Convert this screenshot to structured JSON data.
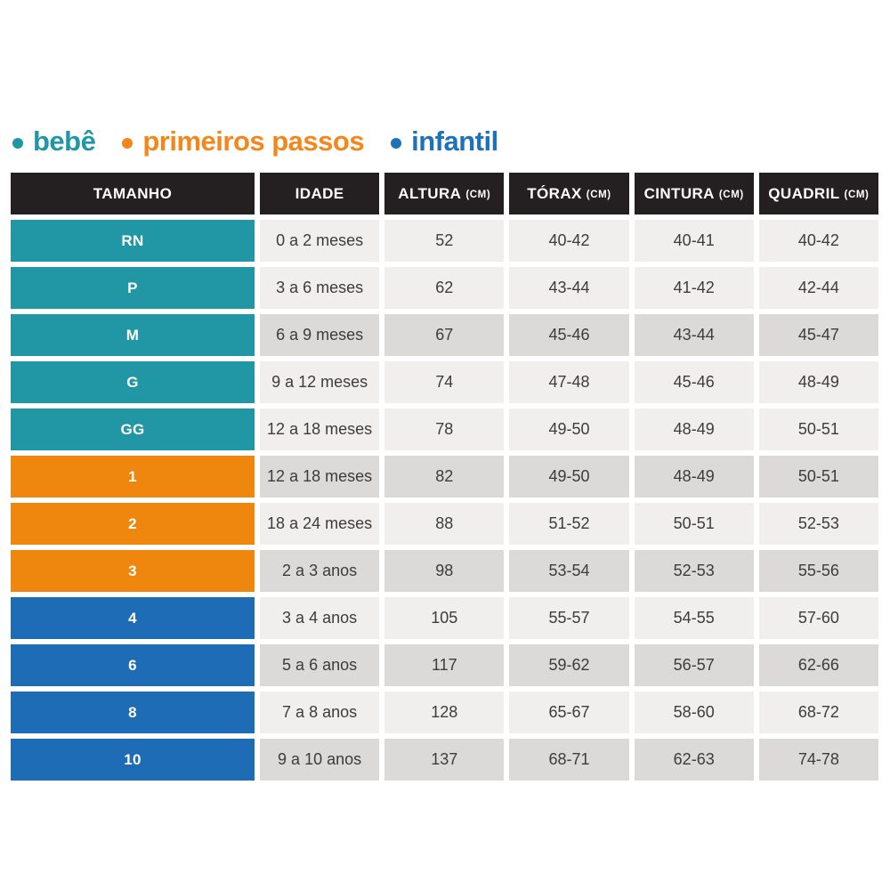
{
  "page": {
    "background": "#ffffff"
  },
  "chart_data": {
    "type": "table",
    "title": "",
    "legend": [
      {
        "label": "bebê",
        "color": "#2196a5",
        "slug": "bebe"
      },
      {
        "label": "primeiros passos",
        "color": "#f5861a",
        "slug": "primeiros-passos"
      },
      {
        "label": "infantil",
        "color": "#1d72ba",
        "slug": "infantil"
      }
    ],
    "columns": [
      {
        "label": "TAMANHO",
        "unit": "",
        "slug": "tamanho"
      },
      {
        "label": "IDADE",
        "unit": "",
        "slug": "idade"
      },
      {
        "label": "ALTURA",
        "unit": "(CM)",
        "slug": "altura"
      },
      {
        "label": "TÓRAX",
        "unit": "(CM)",
        "slug": "torax"
      },
      {
        "label": "CINTURA",
        "unit": "(CM)",
        "slug": "cintura"
      },
      {
        "label": "QUADRIL",
        "unit": "(CM)",
        "slug": "quadril"
      }
    ],
    "rows": [
      {
        "size": "RN",
        "age": "0 a 2 meses",
        "altura": "52",
        "torax": "40-42",
        "cintura": "40-41",
        "quadril": "40-42",
        "group": "bebe",
        "shade": "light"
      },
      {
        "size": "P",
        "age": "3 a 6 meses",
        "altura": "62",
        "torax": "43-44",
        "cintura": "41-42",
        "quadril": "42-44",
        "group": "bebe",
        "shade": "light"
      },
      {
        "size": "M",
        "age": "6 a 9 meses",
        "altura": "67",
        "torax": "45-46",
        "cintura": "43-44",
        "quadril": "45-47",
        "group": "bebe",
        "shade": "dark"
      },
      {
        "size": "G",
        "age": "9 a 12 meses",
        "altura": "74",
        "torax": "47-48",
        "cintura": "45-46",
        "quadril": "48-49",
        "group": "bebe",
        "shade": "light"
      },
      {
        "size": "GG",
        "age": "12 a 18 meses",
        "altura": "78",
        "torax": "49-50",
        "cintura": "48-49",
        "quadril": "50-51",
        "group": "bebe",
        "shade": "light"
      },
      {
        "size": "1",
        "age": "12 a 18 meses",
        "altura": "82",
        "torax": "49-50",
        "cintura": "48-49",
        "quadril": "50-51",
        "group": "primeiros-passos",
        "shade": "dark"
      },
      {
        "size": "2",
        "age": "18 a 24 meses",
        "altura": "88",
        "torax": "51-52",
        "cintura": "50-51",
        "quadril": "52-53",
        "group": "primeiros-passos",
        "shade": "light"
      },
      {
        "size": "3",
        "age": "2 a 3 anos",
        "altura": "98",
        "torax": "53-54",
        "cintura": "52-53",
        "quadril": "55-56",
        "group": "primeiros-passos",
        "shade": "dark"
      },
      {
        "size": "4",
        "age": "3 a 4 anos",
        "altura": "105",
        "torax": "55-57",
        "cintura": "54-55",
        "quadril": "57-60",
        "group": "infantil",
        "shade": "light"
      },
      {
        "size": "6",
        "age": "5 a 6 anos",
        "altura": "117",
        "torax": "59-62",
        "cintura": "56-57",
        "quadril": "62-66",
        "group": "infantil",
        "shade": "dark"
      },
      {
        "size": "8",
        "age": "7 a 8 anos",
        "altura": "128",
        "torax": "65-67",
        "cintura": "58-60",
        "quadril": "68-72",
        "group": "infantil",
        "shade": "light"
      },
      {
        "size": "10",
        "age": "9 a 10 anos",
        "altura": "137",
        "torax": "68-71",
        "cintura": "62-63",
        "quadril": "74-78",
        "group": "infantil",
        "shade": "dark"
      }
    ],
    "group_colors": {
      "bebe": "#2196a5",
      "primeiros-passos": "#ef860e",
      "infantil": "#1e6cb5"
    },
    "shade_colors": {
      "light": "#f0efee",
      "dark": "#dbdad9"
    },
    "header_background": "#242021",
    "layout_hints": {
      "legend_position": "top-left",
      "grid": "off"
    }
  }
}
